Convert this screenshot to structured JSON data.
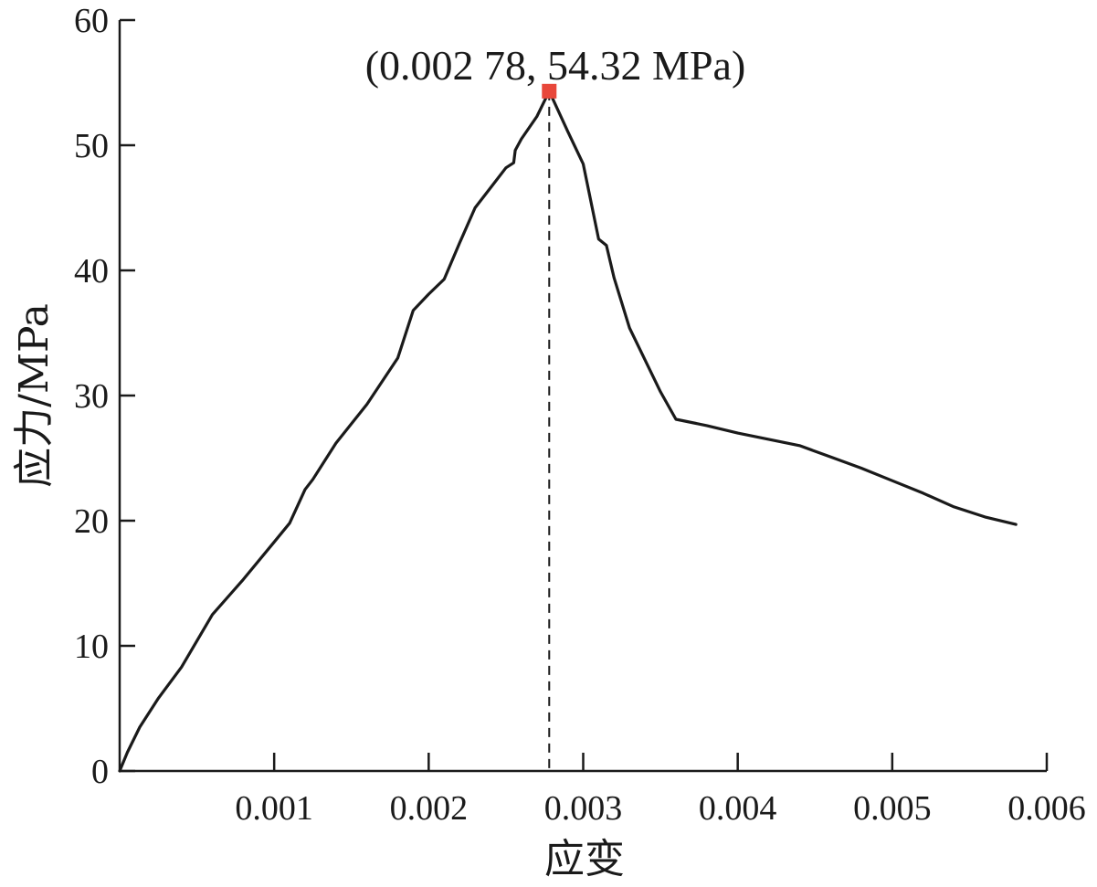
{
  "chart_data": {
    "type": "line",
    "title": "",
    "xlabel": "应变",
    "ylabel": "应力/MPa",
    "xlim": [
      0,
      0.006
    ],
    "ylim": [
      0,
      60
    ],
    "grid": false,
    "x_ticks": [
      0.001,
      0.002,
      0.003,
      0.004,
      0.005,
      0.006
    ],
    "x_tick_labels": [
      "0.001",
      "0.002",
      "0.003",
      "0.004",
      "0.005",
      "0.006"
    ],
    "y_ticks": [
      0,
      10,
      20,
      30,
      40,
      50,
      60
    ],
    "y_tick_labels": [
      "0",
      "10",
      "20",
      "30",
      "40",
      "50",
      "60"
    ],
    "series": [
      {
        "x": [
          0.0,
          5e-05,
          0.00013,
          0.00025,
          0.0004,
          0.0006,
          0.0008,
          0.001,
          0.0011,
          0.0012,
          0.00125,
          0.0014,
          0.0016,
          0.0018,
          0.0019,
          0.002,
          0.0021,
          0.0022,
          0.0023,
          0.0024,
          0.0025,
          0.00255,
          0.00256,
          0.0026,
          0.0027,
          0.00278,
          0.0029,
          0.003,
          0.0031,
          0.00315,
          0.0032,
          0.0033,
          0.0035,
          0.0036,
          0.0038,
          0.004,
          0.0042,
          0.0044,
          0.0046,
          0.0048,
          0.005,
          0.0052,
          0.0054,
          0.0056,
          0.0058
        ],
        "y": [
          0.0,
          1.5,
          3.5,
          5.8,
          8.3,
          12.5,
          15.3,
          18.3,
          19.8,
          22.5,
          23.3,
          26.2,
          29.3,
          33.0,
          36.8,
          38.1,
          39.3,
          42.2,
          45.0,
          46.6,
          48.2,
          48.6,
          49.6,
          50.5,
          52.3,
          54.32,
          51.1,
          48.5,
          42.5,
          42.0,
          39.4,
          35.4,
          30.3,
          28.1,
          27.6,
          27.0,
          26.5,
          26.0,
          25.1,
          24.2,
          23.2,
          22.2,
          21.1,
          20.3,
          19.7
        ],
        "color": "#1a1a1a"
      }
    ],
    "peak_point": {
      "x": 0.00278,
      "y": 54.32,
      "label": "(0.002 78, 54.32 MPa)",
      "color": "#e8473a"
    }
  }
}
